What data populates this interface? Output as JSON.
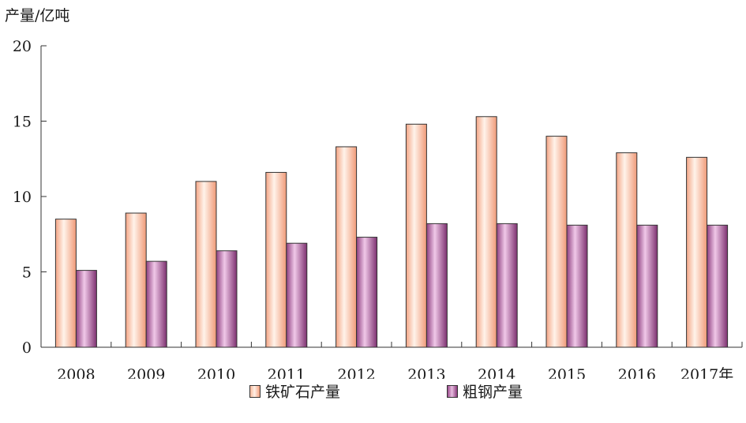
{
  "chart_data": {
    "type": "bar",
    "title": "",
    "ylabel": "产量/亿吨",
    "xlabel": "",
    "ylim": [
      0,
      20
    ],
    "yticks": [
      "0",
      "5",
      "10",
      "15",
      "20"
    ],
    "categories": [
      "2008",
      "2009",
      "2010",
      "2011",
      "2012",
      "2013",
      "2014",
      "2015",
      "2016",
      "2017年"
    ],
    "series": [
      {
        "name": "铁矿石产量",
        "color": "#f7b89a",
        "values": [
          8.5,
          8.9,
          11.0,
          11.6,
          13.3,
          14.8,
          15.3,
          14.0,
          12.9,
          12.6
        ]
      },
      {
        "name": "粗钢产量",
        "color": "#b86aa8",
        "values": [
          5.1,
          5.7,
          6.4,
          6.9,
          7.3,
          8.2,
          8.2,
          8.1,
          8.1,
          8.1
        ]
      }
    ],
    "grid": false,
    "legend_position": "bottom"
  }
}
